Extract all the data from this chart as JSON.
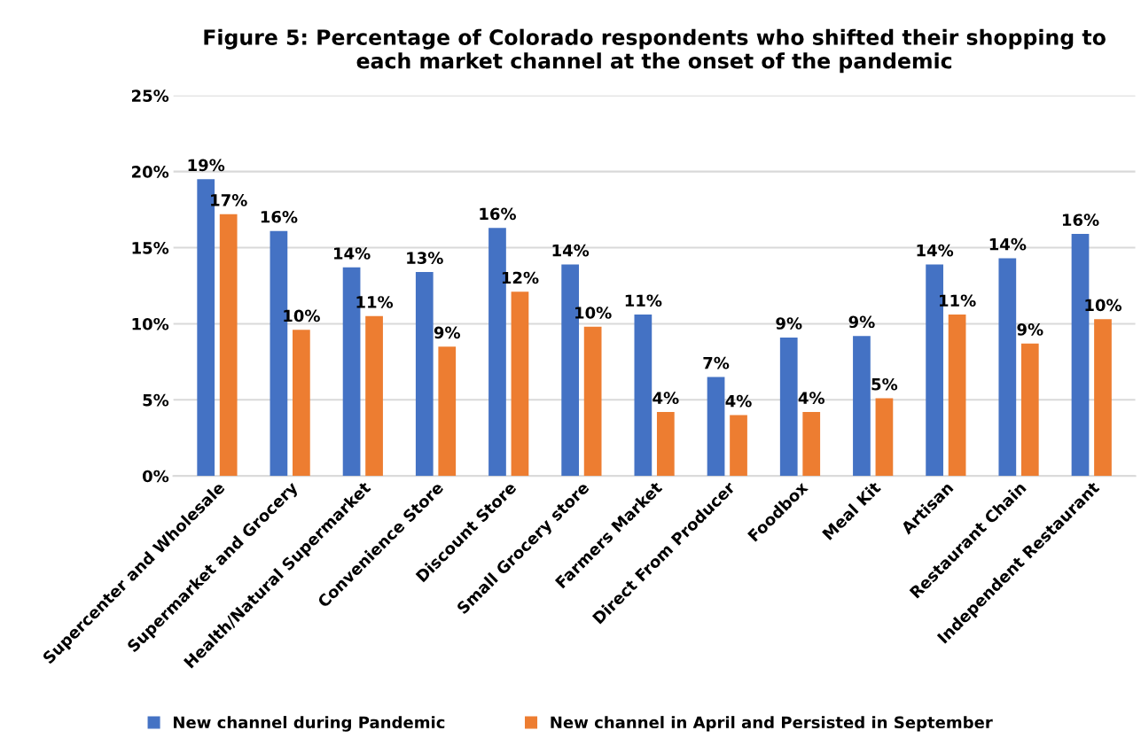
{
  "chart_data": {
    "type": "bar",
    "title": "Figure 5: Percentage of Colorado respondents who shifted their shopping to\neach market channel at the onset of the pandemic",
    "categories": [
      "Supercenter and Wholesale",
      "Supermarket and Grocery",
      "Health/Natural Supermarket",
      "Convenience Store",
      "Discount Store",
      "Small Grocery store",
      "Farmers Market",
      "Direct From Producer",
      "Foodbox",
      "Meal Kit",
      "Artisan",
      "Restaurant Chain",
      "Independent Restaurant"
    ],
    "series": [
      {
        "name": "New channel during Pandemic",
        "color": "#4472c4",
        "values": [
          19.5,
          16.1,
          13.7,
          13.4,
          16.3,
          13.9,
          10.6,
          6.5,
          9.1,
          9.2,
          13.9,
          14.3,
          15.9
        ],
        "value_labels": [
          "19%",
          "16%",
          "14%",
          "13%",
          "16%",
          "14%",
          "11%",
          "7%",
          "9%",
          "9%",
          "14%",
          "14%",
          "16%"
        ]
      },
      {
        "name": "New channel in April and Persisted in September",
        "color": "#ed7d31",
        "values": [
          17.2,
          9.6,
          10.5,
          8.5,
          12.1,
          9.8,
          4.2,
          4.0,
          4.2,
          5.1,
          10.6,
          8.7,
          10.3
        ],
        "value_labels": [
          "17%",
          "10%",
          "11%",
          "9%",
          "12%",
          "10%",
          "4%",
          "4%",
          "4%",
          "5%",
          "11%",
          "9%",
          "10%"
        ]
      }
    ],
    "ylim": [
      0,
      25
    ],
    "yticks": [
      {
        "value": 0,
        "label": "0%"
      },
      {
        "value": 5,
        "label": "5%"
      },
      {
        "value": 10,
        "label": "10%"
      },
      {
        "value": 15,
        "label": "15%"
      },
      {
        "value": 20,
        "label": "20%"
      },
      {
        "value": 25,
        "label": "25%"
      }
    ],
    "grid": "y",
    "legend": "bottom"
  }
}
